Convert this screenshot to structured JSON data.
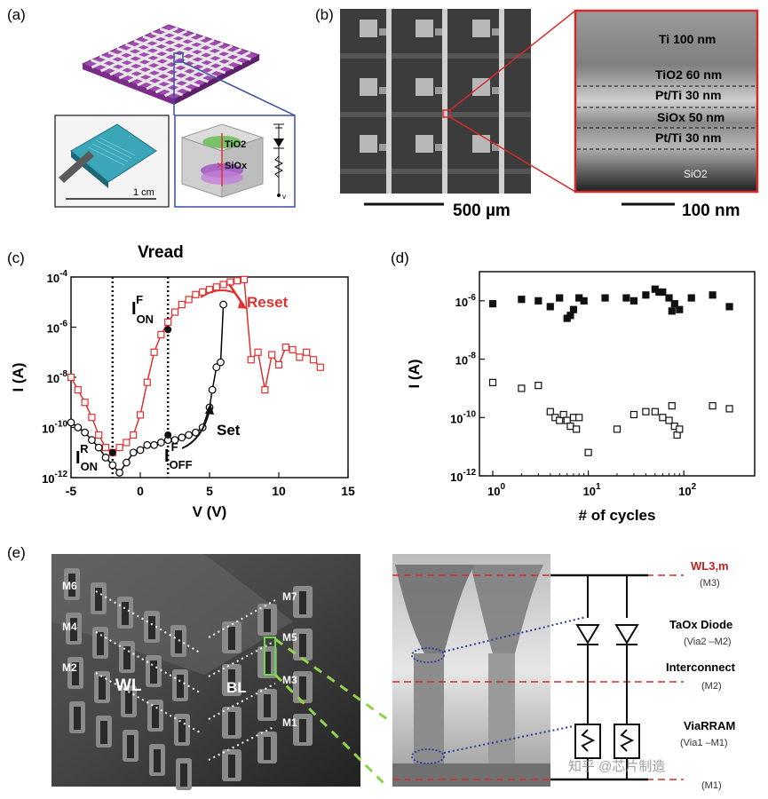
{
  "panels": {
    "a": {
      "label": "(a)",
      "photo_scale": "1 cm",
      "layer_top": "TiO2",
      "layer_bottom": "SiOx",
      "voltage_label": "v"
    },
    "b": {
      "label": "(b)",
      "scale_left": "500 µm",
      "scale_right": "100 nm",
      "layers": [
        "Ti 100 nm",
        "TiO2 60 nm",
        "Pt/Ti 30 nm",
        "SiOx 50 nm",
        "Pt/Ti 30 nm",
        "SiO2"
      ]
    },
    "c": {
      "label": "(c)",
      "vread": "Vread",
      "ion_f": "I_ON^F",
      "ioff_f": "I_OFF^F",
      "ion_r": "I_ON^R",
      "reset": "Reset",
      "set": "Set"
    },
    "d": {
      "label": "(d)"
    },
    "e": {
      "label": "(e)",
      "sem_labels": [
        "M7",
        "M6",
        "M5",
        "M4",
        "M3",
        "M2",
        "M1",
        "WL",
        "BL"
      ],
      "circuit": {
        "wl": "WL3,m",
        "wl_sub": "(M3)",
        "diode": "TaOx Diode",
        "diode_sub": "(Via2 –M2)",
        "interconnect": "Interconnect",
        "interconnect_sub": "(M2)",
        "via": "ViaRRAM",
        "via_sub": "(Via1 –M1)",
        "bottom": "(M1)"
      },
      "watermark": "知乎 @芯片制造"
    }
  },
  "chart_data": [
    {
      "id": "c",
      "type": "line",
      "xlabel": "V (V)",
      "ylabel": "I (A)",
      "xlim": [
        -5,
        15
      ],
      "ylim_log10": [
        -12,
        -4
      ],
      "xticks": [
        "-5",
        "0",
        "5",
        "10",
        "15"
      ],
      "yticks": [
        "10-12",
        "10-10",
        "10-8",
        "10-6",
        "10-4"
      ],
      "vread_lines": [
        -2,
        2
      ],
      "series": [
        {
          "color": "#e03030",
          "marker": "open-square",
          "x": [
            -5,
            -4.5,
            -4,
            -3.5,
            -3,
            -2.5,
            -2,
            -1.5,
            -1,
            -0.5,
            0,
            0.5,
            1,
            1.5,
            2,
            2.5,
            3,
            3.5,
            4,
            4.5,
            5,
            5.5,
            6,
            6.5,
            7,
            7.5,
            8,
            8.5,
            9,
            9.5,
            10,
            10.5,
            11,
            11.5,
            12,
            12.5,
            13
          ],
          "log10_y": [
            -8.0,
            -8.5,
            -9.0,
            -9.6,
            -10.3,
            -10.8,
            -11.0,
            -10.8,
            -10.6,
            -10.3,
            -9.5,
            -8.2,
            -7.0,
            -6.3,
            -5.8,
            -5.4,
            -5.1,
            -4.9,
            -4.7,
            -4.6,
            -4.5,
            -4.4,
            -4.3,
            -4.2,
            -4.15,
            -4.1,
            -7.3,
            -7.0,
            -8.5,
            -7.1,
            -7.5,
            -6.8,
            -6.9,
            -7.2,
            -7.0,
            -7.3,
            -7.6
          ]
        },
        {
          "color": "#000000",
          "marker": "open-circle",
          "x": [
            -5,
            -4.5,
            -4,
            -3.5,
            -3,
            -2.5,
            -2,
            -1.5,
            -1,
            -0.5,
            0,
            0.5,
            1,
            1.5,
            2,
            2.5,
            3,
            3.5,
            4,
            4.5,
            5,
            5.2,
            5.5,
            5.8,
            6
          ],
          "log10_y": [
            -9.8,
            -10.0,
            -10.2,
            -10.5,
            -10.8,
            -11.2,
            -11.5,
            -11.8,
            -11.4,
            -11.0,
            -10.9,
            -10.7,
            -10.7,
            -10.6,
            -10.5,
            -10.5,
            -10.4,
            -10.3,
            -10.2,
            -10.0,
            -9.2,
            -8.5,
            -7.6,
            -7.4,
            -5.1
          ]
        }
      ]
    },
    {
      "id": "d",
      "type": "scatter",
      "xlabel": "# of cycles",
      "ylabel": "I (A)",
      "xscale": "log",
      "xlim": [
        1,
        400
      ],
      "ylim_log10": [
        -12,
        -5
      ],
      "xticks": [
        "10^0",
        "10^1",
        "10^2"
      ],
      "yticks": [
        "10-12",
        "10-10",
        "10-8",
        "10-6"
      ],
      "series": [
        {
          "marker": "filled-square",
          "x": [
            1,
            2,
            3,
            4,
            5,
            6,
            6.5,
            7,
            8,
            9,
            15,
            25,
            30,
            40,
            50,
            55,
            60,
            70,
            75,
            80,
            90,
            120,
            200,
            300
          ],
          "log10_y": [
            -6.1,
            -5.95,
            -6.0,
            -6.2,
            -5.9,
            -6.6,
            -6.5,
            -6.3,
            -5.9,
            -6.0,
            -5.9,
            -5.9,
            -6.0,
            -5.8,
            -5.6,
            -5.7,
            -5.7,
            -5.9,
            -6.35,
            -6.1,
            -6.3,
            -5.9,
            -5.8,
            -6.2
          ]
        },
        {
          "marker": "open-square",
          "x": [
            1,
            2,
            3,
            4,
            4.5,
            5,
            5.5,
            6,
            6.5,
            7,
            7.5,
            8,
            10,
            20,
            30,
            40,
            50,
            60,
            70,
            75,
            80,
            85,
            90,
            200,
            300
          ],
          "log10_y": [
            -8.8,
            -9.0,
            -8.9,
            -9.8,
            -10.0,
            -10.1,
            -9.9,
            -10.1,
            -10.3,
            -10.0,
            -10.4,
            -10.0,
            -11.2,
            -10.4,
            -9.9,
            -9.8,
            -9.8,
            -10.0,
            -10.1,
            -9.6,
            -10.3,
            -10.6,
            -10.4,
            -9.6,
            -9.7
          ]
        }
      ]
    }
  ]
}
